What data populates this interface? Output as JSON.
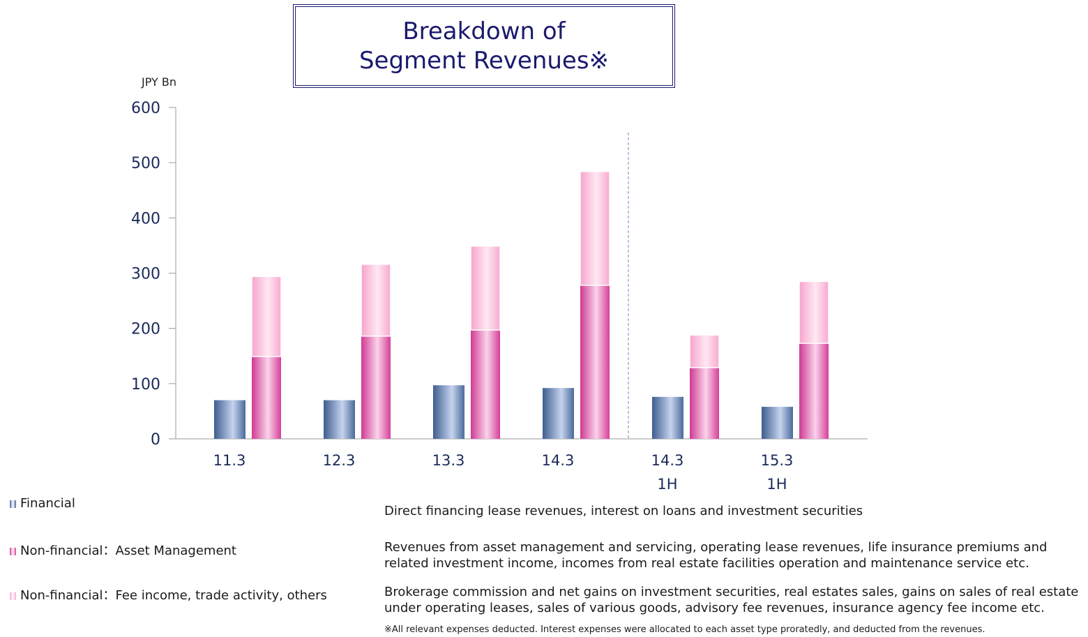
{
  "chart_data": {
    "type": "bar",
    "title": "Breakdown of\nSegment Revenues※",
    "y_unit": "JPY Bn",
    "categories": [
      "11.3",
      "12.3",
      "13.3",
      "14.3",
      "14.3\n1H",
      "15.3\n1H"
    ],
    "series": [
      {
        "name": "Financial",
        "color": "#4a6a9c",
        "values": [
          70,
          70,
          97,
          92,
          76,
          58
        ],
        "description": "Direct financing lease revenues, interest on loans and investment securities"
      },
      {
        "name": "Non-financial：Asset Management",
        "color": "#d63f99",
        "values": [
          149,
          186,
          197,
          278,
          129,
          173
        ],
        "description": "Revenues from asset management and servicing, operating lease revenues, life insurance premiums and\nrelated investment income, incomes from real estate facilities operation and maintenance service etc."
      },
      {
        "name": "Non-financial：Fee income, trade activity, others",
        "color": "#f8a9d0",
        "values": [
          145,
          130,
          152,
          206,
          59,
          112
        ],
        "description": "Brokerage commission and net gains on investment securities, real estates sales, gains on sales of real estate\nunder operating leases, sales of various goods, advisory fee revenues, insurance agency fee income etc."
      }
    ],
    "ylim": [
      0,
      600
    ],
    "yticks": [
      0,
      100,
      200,
      300,
      400,
      500,
      600
    ],
    "footnote": "※All relevant expenses deducted. Interest expenses were allocated to each asset type proratedly, and deducted from the revenues."
  }
}
